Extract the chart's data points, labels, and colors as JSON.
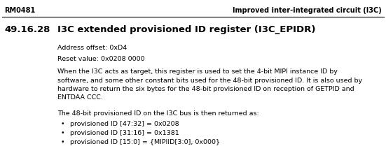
{
  "header_left": "RM0481",
  "header_right": "Improved inter-integrated circuit (I3C)",
  "section_number": "49.16.28",
  "section_title": "I3C extended provisioned ID register (I3C_EPIDR)",
  "address_offset": "Address offset: 0xD4",
  "reset_value": "Reset value: 0x0208 0000",
  "body_lines": [
    "When the I3C acts as target, this register is used to set the 4-bit MIPI instance ID by",
    "software, and some other constant bits used for the 48-bit provisioned ID. It is also used by",
    "hardware to return the six bytes for the 48-bit provisioned ID on reception of GETPID and",
    "ENTDAA CCC."
  ],
  "list_intro": "The 48-bit provisioned ID on the I3C bus is then returned as:",
  "bullets": [
    "provisioned ID [47:32] = 0x0208",
    "provisioned ID [31:16] = 0x1381",
    "provisioned ID [15:0] = {MIPIID[3:0], 0x000}"
  ],
  "bg_color": "#ffffff",
  "text_color": "#000000",
  "header_font_size": 7.0,
  "section_title_font_size": 9.5,
  "body_font_size": 6.8,
  "fig_width": 5.51,
  "fig_height": 2.39,
  "dpi": 100
}
